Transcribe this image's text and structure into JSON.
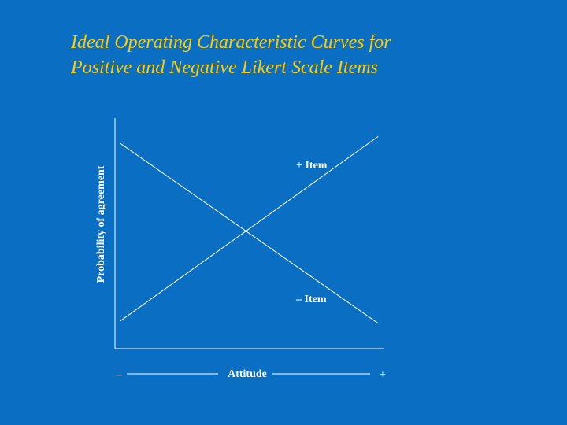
{
  "slide": {
    "title_line1": "Ideal Operating Characteristic Curves for",
    "title_line2": "Positive and Negative Likert Scale Items"
  },
  "chart_data": {
    "type": "line",
    "title": "Ideal Operating Characteristic Curves for Positive and Negative Likert Scale Items",
    "xlabel": "Attitude",
    "ylabel": "Probability of agreement",
    "x_axis_end_labels": {
      "left": "–",
      "right": "+"
    },
    "grid": false,
    "line_color": "#ffffff",
    "title_color": "#ffcc00",
    "background_color": "#0a6ec2",
    "xlim": [
      0,
      1
    ],
    "ylim": [
      0,
      1
    ],
    "series": [
      {
        "name": "+ Item",
        "x": [
          0.02,
          0.98
        ],
        "y": [
          0.12,
          0.92
        ]
      },
      {
        "name": "– Item",
        "x": [
          0.02,
          0.98
        ],
        "y": [
          0.89,
          0.11
        ]
      }
    ]
  }
}
